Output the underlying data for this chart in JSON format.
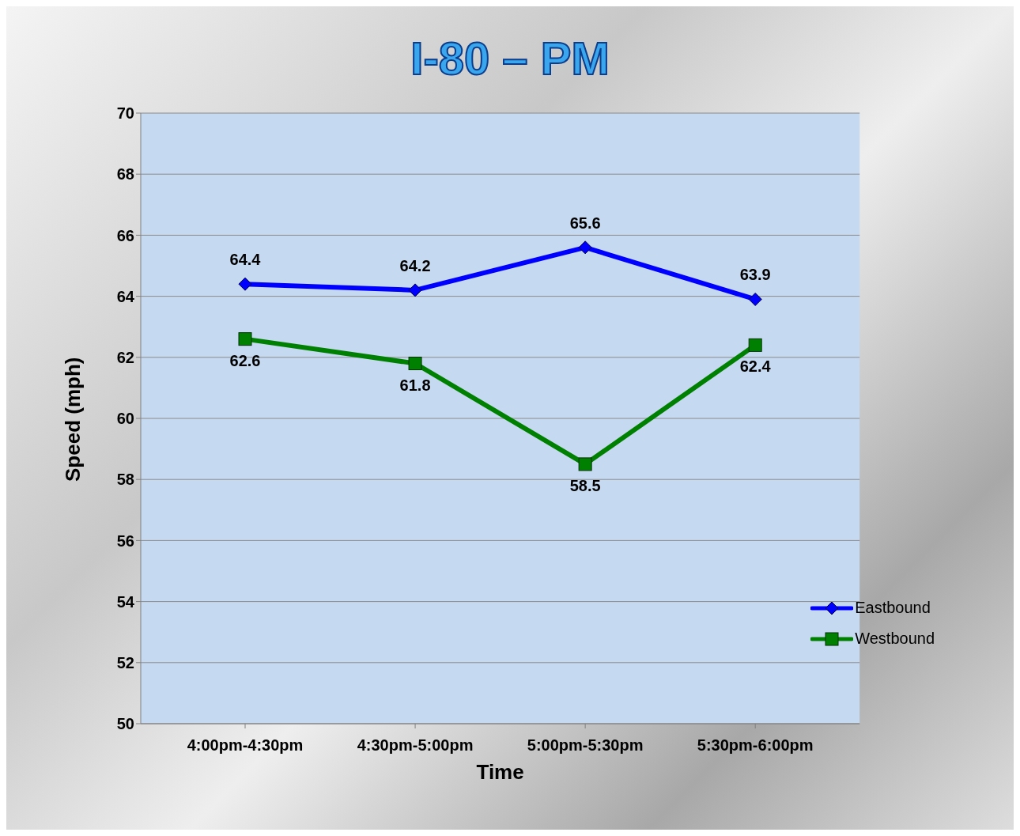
{
  "chart_data": {
    "type": "line",
    "title": "I-80 – PM",
    "xlabel": "Time",
    "ylabel": "Speed (mph)",
    "categories": [
      "4:00pm-4:30pm",
      "4:30pm-5:00pm",
      "5:00pm-5:30pm",
      "5:30pm-6:00pm"
    ],
    "series": [
      {
        "name": "Eastbound",
        "color": "#0000ff",
        "marker": "diamond",
        "values": [
          64.4,
          64.2,
          65.6,
          63.9
        ]
      },
      {
        "name": "Westbound",
        "color": "#008000",
        "marker": "square",
        "values": [
          62.6,
          61.8,
          58.5,
          62.4
        ]
      }
    ],
    "ylim": [
      50,
      70
    ],
    "yticks": [
      50,
      52,
      54,
      56,
      58,
      60,
      62,
      64,
      66,
      68,
      70
    ],
    "grid": "y",
    "legend": "bottom right",
    "data_labels": true
  }
}
